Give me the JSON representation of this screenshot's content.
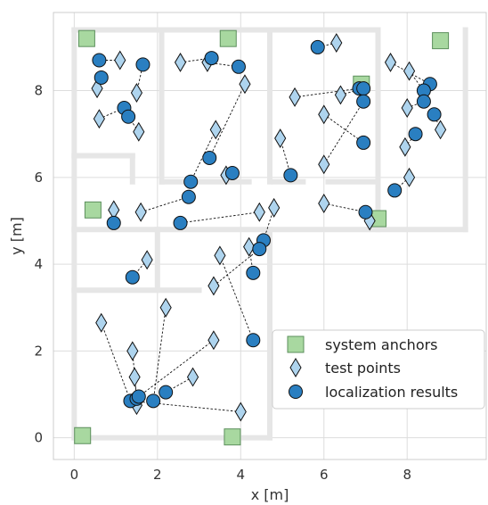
{
  "chart_data": {
    "type": "scatter",
    "xlabel": "x [m]",
    "ylabel": "y [m]",
    "xlim": [
      -0.5,
      9.9
    ],
    "ylim": [
      -0.5,
      9.8
    ],
    "xticks": [
      0,
      2,
      4,
      6,
      8
    ],
    "yticks": [
      0,
      2,
      4,
      6,
      8
    ],
    "grid": true,
    "legend_position": "lower-right",
    "colors": {
      "anchor_fill": "#a8d8a0",
      "anchor_edge": "#5c8f5c",
      "test_fill": "#aed4ee",
      "result_fill": "#2a7fc1",
      "wall": "#e6e6e6",
      "grid": "#dddddd",
      "text": "#333333"
    },
    "walls": [
      [
        [
          0,
          9.4
        ],
        [
          7.3,
          9.4
        ]
      ],
      [
        [
          0,
          0
        ],
        [
          4.7,
          0
        ]
      ],
      [
        [
          0,
          0
        ],
        [
          0,
          9.4
        ]
      ],
      [
        [
          0,
          6.5
        ],
        [
          1.4,
          6.5
        ]
      ],
      [
        [
          1.4,
          5.9
        ],
        [
          1.4,
          6.5
        ]
      ],
      [
        [
          0,
          4.8
        ],
        [
          2,
          4.8
        ]
      ],
      [
        [
          0,
          3.4
        ],
        [
          3.0,
          3.4
        ]
      ],
      [
        [
          2.0,
          3.4
        ],
        [
          2.0,
          4.8
        ]
      ],
      [
        [
          2.0,
          4.8
        ],
        [
          9.4,
          4.8
        ]
      ],
      [
        [
          4.7,
          0
        ],
        [
          4.7,
          4.8
        ]
      ],
      [
        [
          2.1,
          5.9
        ],
        [
          4.2,
          5.9
        ]
      ],
      [
        [
          4.8,
          5.9
        ],
        [
          5.5,
          5.9
        ]
      ],
      [
        [
          6.1,
          5.9
        ],
        [
          7.3,
          5.9
        ]
      ],
      [
        [
          2.1,
          5.9
        ],
        [
          2.1,
          9.4
        ]
      ],
      [
        [
          4.7,
          5.9
        ],
        [
          4.7,
          9.4
        ]
      ],
      [
        [
          7.3,
          5.9
        ],
        [
          7.3,
          9.4
        ]
      ],
      [
        [
          9.4,
          4.8
        ],
        [
          9.4,
          9.4
        ]
      ],
      [
        [
          7.3,
          4.8
        ],
        [
          7.3,
          5.9
        ]
      ]
    ],
    "series": [
      {
        "name": "system anchors",
        "marker": "square",
        "points": [
          [
            0.3,
            9.2
          ],
          [
            3.7,
            9.2
          ],
          [
            8.8,
            9.15
          ],
          [
            0.45,
            5.25
          ],
          [
            6.9,
            8.15
          ],
          [
            7.3,
            5.05
          ],
          [
            0.2,
            0.05
          ],
          [
            3.8,
            0.02
          ]
        ]
      },
      {
        "name": "test points",
        "marker": "diamond",
        "points": [
          [
            1.1,
            8.7
          ],
          [
            0.55,
            8.05
          ],
          [
            1.5,
            7.95
          ],
          [
            0.6,
            7.35
          ],
          [
            1.55,
            7.05
          ],
          [
            2.55,
            8.65
          ],
          [
            3.2,
            8.65
          ],
          [
            4.1,
            8.15
          ],
          [
            3.4,
            7.1
          ],
          [
            3.65,
            6.05
          ],
          [
            6.3,
            9.1
          ],
          [
            5.3,
            7.85
          ],
          [
            4.95,
            6.9
          ],
          [
            6.0,
            7.45
          ],
          [
            6.4,
            7.9
          ],
          [
            6.0,
            6.3
          ],
          [
            7.6,
            8.65
          ],
          [
            8.05,
            8.45
          ],
          [
            8.0,
            7.6
          ],
          [
            8.8,
            7.1
          ],
          [
            7.95,
            6.7
          ],
          [
            8.05,
            6.0
          ],
          [
            6.0,
            5.4
          ],
          [
            7.1,
            5.0
          ],
          [
            0.95,
            5.25
          ],
          [
            1.6,
            5.2
          ],
          [
            4.45,
            5.2
          ],
          [
            4.8,
            5.3
          ],
          [
            1.75,
            4.1
          ],
          [
            4.2,
            4.4
          ],
          [
            3.5,
            4.2
          ],
          [
            3.35,
            3.5
          ],
          [
            0.65,
            2.65
          ],
          [
            1.4,
            2.0
          ],
          [
            2.2,
            3.0
          ],
          [
            3.35,
            2.25
          ],
          [
            1.45,
            1.4
          ],
          [
            2.85,
            1.4
          ],
          [
            1.5,
            0.75
          ],
          [
            4.0,
            0.6
          ]
        ]
      },
      {
        "name": "localization results",
        "marker": "circle",
        "points": [
          [
            0.6,
            8.7
          ],
          [
            1.65,
            8.6
          ],
          [
            0.65,
            8.3
          ],
          [
            1.2,
            7.6
          ],
          [
            1.3,
            7.4
          ],
          [
            3.3,
            8.75
          ],
          [
            3.95,
            8.55
          ],
          [
            3.25,
            6.45
          ],
          [
            3.8,
            6.1
          ],
          [
            2.8,
            5.9
          ],
          [
            2.75,
            5.55
          ],
          [
            2.55,
            4.95
          ],
          [
            5.85,
            9.0
          ],
          [
            6.85,
            8.05
          ],
          [
            6.95,
            8.05
          ],
          [
            6.95,
            7.75
          ],
          [
            6.95,
            6.8
          ],
          [
            5.2,
            6.05
          ],
          [
            8.55,
            8.15
          ],
          [
            8.4,
            8.0
          ],
          [
            8.4,
            7.75
          ],
          [
            8.65,
            7.45
          ],
          [
            8.2,
            7.0
          ],
          [
            7.7,
            5.7
          ],
          [
            7.0,
            5.2
          ],
          [
            0.95,
            4.95
          ],
          [
            4.55,
            4.55
          ],
          [
            4.45,
            4.35
          ],
          [
            4.3,
            3.8
          ],
          [
            1.4,
            3.7
          ],
          [
            4.3,
            2.25
          ],
          [
            2.2,
            1.05
          ],
          [
            1.9,
            0.85
          ],
          [
            1.35,
            0.85
          ],
          [
            1.5,
            0.9
          ],
          [
            1.55,
            0.95
          ]
        ]
      }
    ],
    "connections": [
      [
        [
          1.1,
          8.7
        ],
        [
          0.6,
          8.7
        ]
      ],
      [
        [
          0.55,
          8.05
        ],
        [
          0.65,
          8.3
        ]
      ],
      [
        [
          1.5,
          7.95
        ],
        [
          1.65,
          8.6
        ]
      ],
      [
        [
          0.6,
          7.35
        ],
        [
          1.2,
          7.6
        ]
      ],
      [
        [
          1.55,
          7.05
        ],
        [
          1.3,
          7.4
        ]
      ],
      [
        [
          2.55,
          8.65
        ],
        [
          3.3,
          8.75
        ]
      ],
      [
        [
          3.2,
          8.65
        ],
        [
          3.95,
          8.55
        ]
      ],
      [
        [
          4.1,
          8.15
        ],
        [
          3.25,
          6.45
        ]
      ],
      [
        [
          3.4,
          7.1
        ],
        [
          2.8,
          5.9
        ]
      ],
      [
        [
          3.65,
          6.05
        ],
        [
          3.8,
          6.1
        ]
      ],
      [
        [
          6.3,
          9.1
        ],
        [
          5.85,
          9.0
        ]
      ],
      [
        [
          5.3,
          7.85
        ],
        [
          6.85,
          8.05
        ]
      ],
      [
        [
          4.95,
          6.9
        ],
        [
          5.2,
          6.05
        ]
      ],
      [
        [
          6.0,
          7.45
        ],
        [
          6.95,
          6.8
        ]
      ],
      [
        [
          6.4,
          7.9
        ],
        [
          6.95,
          8.05
        ]
      ],
      [
        [
          6.0,
          6.3
        ],
        [
          6.95,
          7.75
        ]
      ],
      [
        [
          7.6,
          8.65
        ],
        [
          8.55,
          8.15
        ]
      ],
      [
        [
          8.05,
          8.45
        ],
        [
          8.4,
          8.0
        ]
      ],
      [
        [
          8.0,
          7.6
        ],
        [
          8.4,
          7.75
        ]
      ],
      [
        [
          8.8,
          7.1
        ],
        [
          8.65,
          7.45
        ]
      ],
      [
        [
          7.95,
          6.7
        ],
        [
          8.2,
          7.0
        ]
      ],
      [
        [
          8.05,
          6.0
        ],
        [
          7.7,
          5.7
        ]
      ],
      [
        [
          6.0,
          5.4
        ],
        [
          7.0,
          5.2
        ]
      ],
      [
        [
          7.1,
          5.0
        ],
        [
          7.0,
          5.2
        ]
      ],
      [
        [
          0.95,
          5.25
        ],
        [
          0.95,
          4.95
        ]
      ],
      [
        [
          1.6,
          5.2
        ],
        [
          2.75,
          5.55
        ]
      ],
      [
        [
          4.45,
          5.2
        ],
        [
          2.55,
          4.95
        ]
      ],
      [
        [
          4.8,
          5.3
        ],
        [
          4.55,
          4.55
        ]
      ],
      [
        [
          1.75,
          4.1
        ],
        [
          1.4,
          3.7
        ]
      ],
      [
        [
          4.2,
          4.4
        ],
        [
          4.3,
          3.8
        ]
      ],
      [
        [
          3.5,
          4.2
        ],
        [
          4.3,
          2.25
        ]
      ],
      [
        [
          3.35,
          3.5
        ],
        [
          4.45,
          4.35
        ]
      ],
      [
        [
          0.65,
          2.65
        ],
        [
          1.35,
          0.85
        ]
      ],
      [
        [
          1.4,
          2.0
        ],
        [
          1.5,
          0.9
        ]
      ],
      [
        [
          2.2,
          3.0
        ],
        [
          1.9,
          0.85
        ]
      ],
      [
        [
          3.35,
          2.25
        ],
        [
          1.55,
          0.95
        ]
      ],
      [
        [
          1.45,
          1.4
        ],
        [
          1.5,
          0.9
        ]
      ],
      [
        [
          2.85,
          1.4
        ],
        [
          2.2,
          1.05
        ]
      ],
      [
        [
          1.5,
          0.75
        ],
        [
          1.35,
          0.85
        ]
      ],
      [
        [
          4.0,
          0.6
        ],
        [
          1.35,
          0.85
        ]
      ]
    ]
  }
}
